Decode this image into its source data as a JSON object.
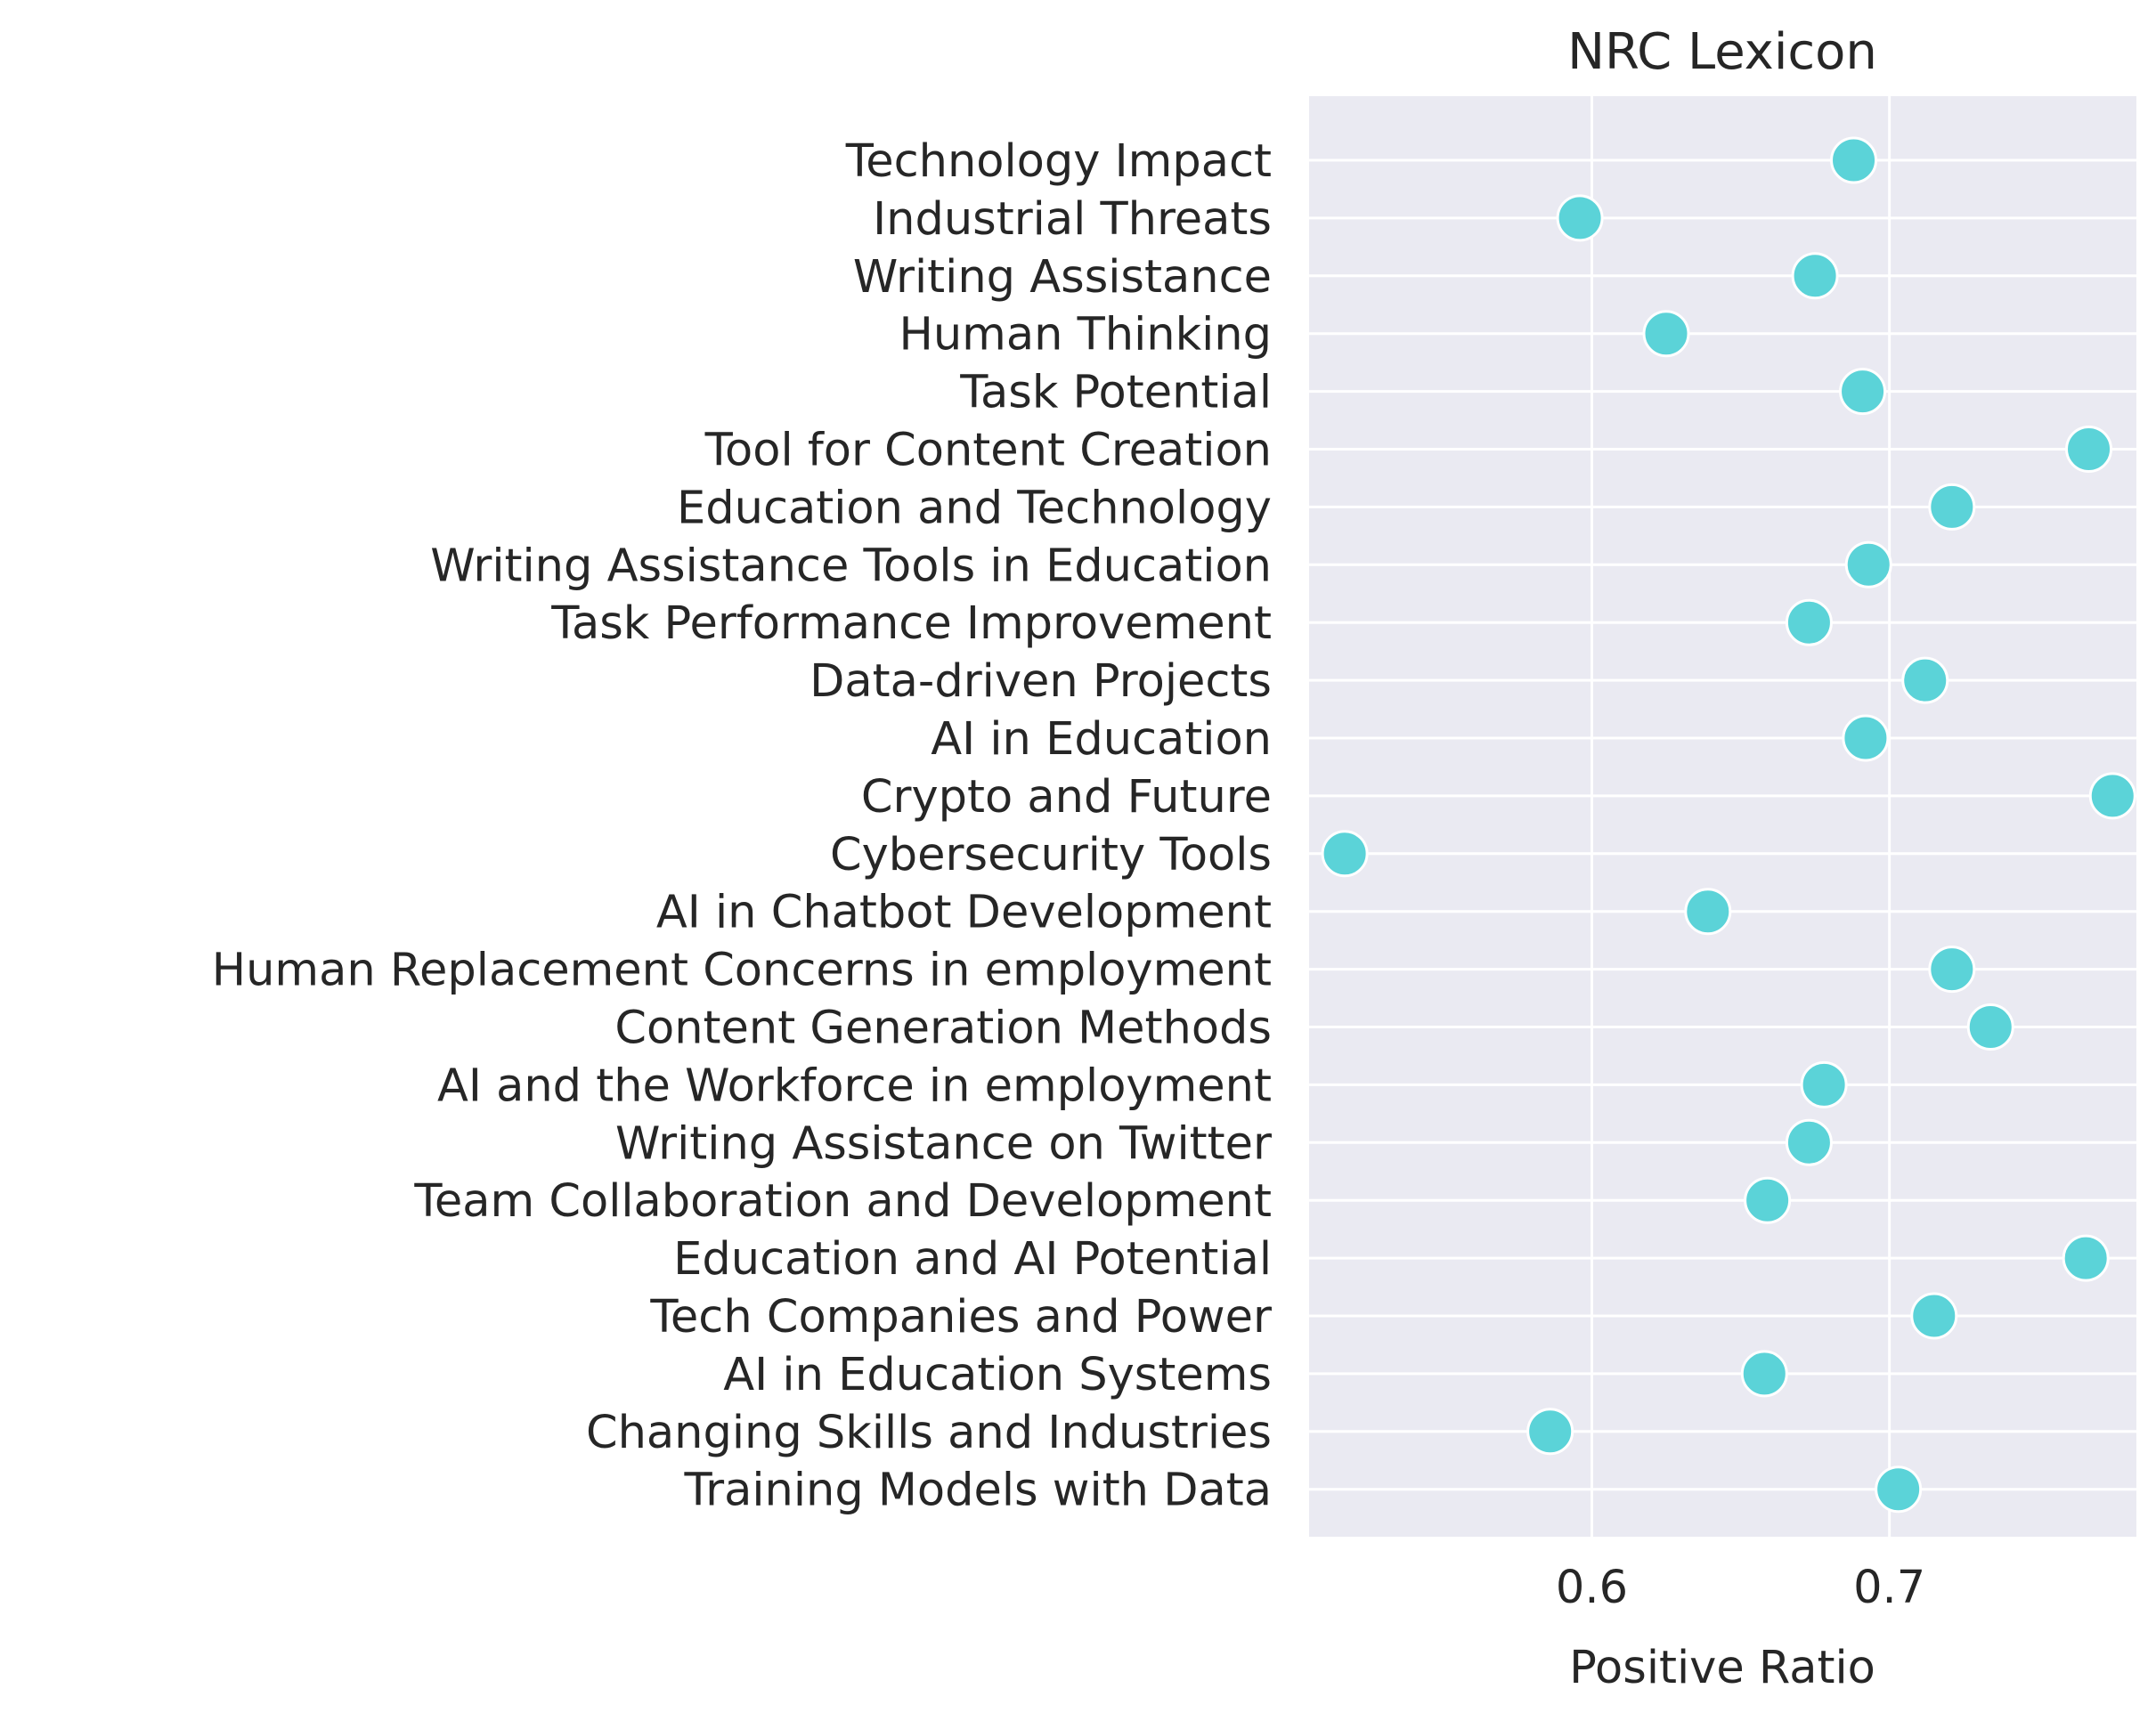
{
  "chart_data": {
    "type": "scatter",
    "title": "NRC Lexicon",
    "xlabel": "Positive Ratio",
    "ylabel": "",
    "xlim": [
      0.505,
      0.783
    ],
    "xticks": [
      0.6,
      0.7
    ],
    "xtick_labels": [
      "0.6",
      "0.7"
    ],
    "grid": true,
    "marker_color": "#5bd3d8",
    "marker_edge": "#ffffff",
    "background_color": "#eaeaf2",
    "categories": [
      "Technology Impact",
      "Industrial Threats",
      "Writing Assistance",
      "Human Thinking",
      "Task Potential",
      "Tool for Content Creation",
      "Education and Technology",
      "Writing Assistance Tools in Education",
      "Task Performance Improvement",
      "Data-driven Projects",
      "AI in Education",
      "Crypto and Future",
      "Cybersecurity Tools",
      "AI in Chatbot Development",
      "Human Replacement Concerns in employment",
      "Content Generation Methods",
      "AI and the Workforce in employment",
      "Writing Assistance on Twitter",
      "Team Collaboration and Development",
      "Education and AI Potential",
      "Tech Companies and Power",
      "AI in Education Systems",
      "Changing Skills and Industries",
      "Training Models with Data"
    ],
    "values": [
      0.688,
      0.596,
      0.675,
      0.625,
      0.691,
      0.767,
      0.721,
      0.693,
      0.673,
      0.712,
      0.692,
      0.775,
      0.517,
      0.639,
      0.721,
      0.734,
      0.678,
      0.673,
      0.659,
      0.766,
      0.715,
      0.658,
      0.586,
      0.703
    ]
  }
}
